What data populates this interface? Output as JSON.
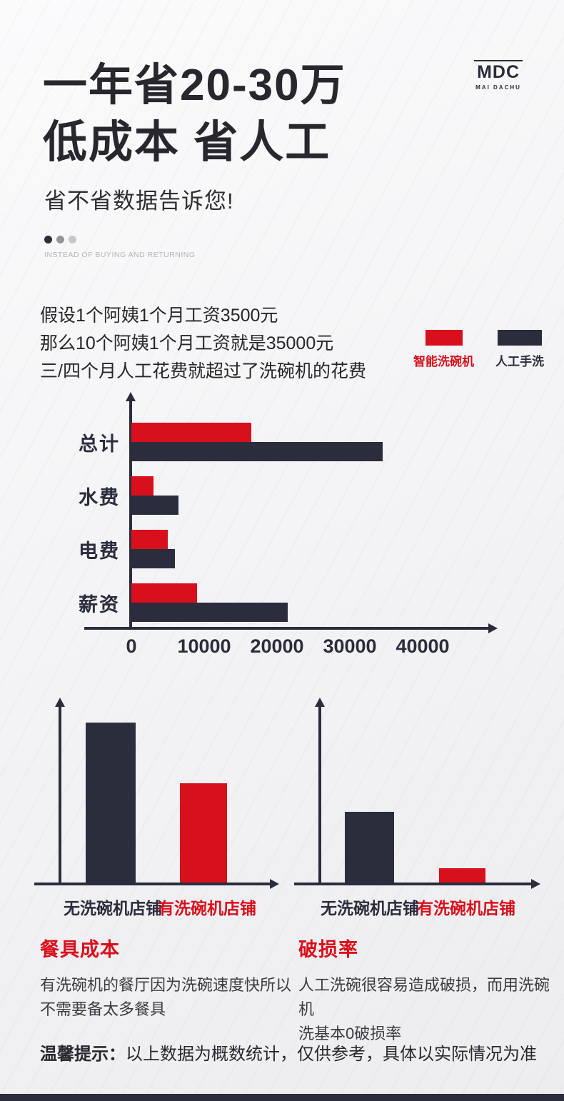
{
  "brand": {
    "logo": "MDC",
    "logo_sub": "MAI DACHU"
  },
  "header": {
    "title_line1": "一年省20-30万",
    "title_line2": "低成本 省人工",
    "subtitle": "省不省数据告诉您!",
    "tagline": "INSTEAD OF BUYING AND RETURNING"
  },
  "intro": {
    "line1": "假设1个阿姨1个月工资3500元",
    "line2": "那么10个阿姨1个月工资就是35000元",
    "line3": "三/四个月人工花费就超过了洗碗机的花费"
  },
  "colors": {
    "red": "#d8101c",
    "dark": "#2b2d3d"
  },
  "chart_data": [
    {
      "type": "bar",
      "orientation": "horizontal",
      "categories": [
        "总计",
        "水费",
        "电费",
        "薪资"
      ],
      "series": [
        {
          "name": "智能洗碗机",
          "color": "#d8101c",
          "values": [
            16500,
            3000,
            5000,
            9000
          ]
        },
        {
          "name": "人工手洗",
          "color": "#2b2d3d",
          "values": [
            34500,
            6500,
            6000,
            21500
          ]
        }
      ],
      "x_ticks": [
        0,
        10000,
        20000,
        30000,
        40000
      ],
      "xlim": [
        0,
        40000
      ],
      "legend_position": "top-right",
      "grid": false
    },
    {
      "type": "bar",
      "title": "餐具成本",
      "categories": [
        "无洗碗机店铺",
        "有洗碗机店铺"
      ],
      "values": [
        100,
        62
      ],
      "ylim": [
        0,
        110
      ],
      "grid": false
    },
    {
      "type": "bar",
      "title": "破损率",
      "categories": [
        "无洗碗机店铺",
        "有洗碗机店铺"
      ],
      "values": [
        44,
        9
      ],
      "ylim": [
        0,
        110
      ],
      "grid": false
    }
  ],
  "sections": {
    "cost": {
      "desc_line1": "有洗碗机的餐厅因为洗碗速度快所以",
      "desc_line2": "不需要备太多餐具"
    },
    "damage": {
      "desc_line1": "人工洗碗很容易造成破损，而用洗碗机",
      "desc_line2": "洗基本0破损率"
    }
  },
  "footer": {
    "tip_label": "温馨提示：",
    "tip_text": "以上数据为概数统计，仅供参考，具体以实际情况为准"
  }
}
